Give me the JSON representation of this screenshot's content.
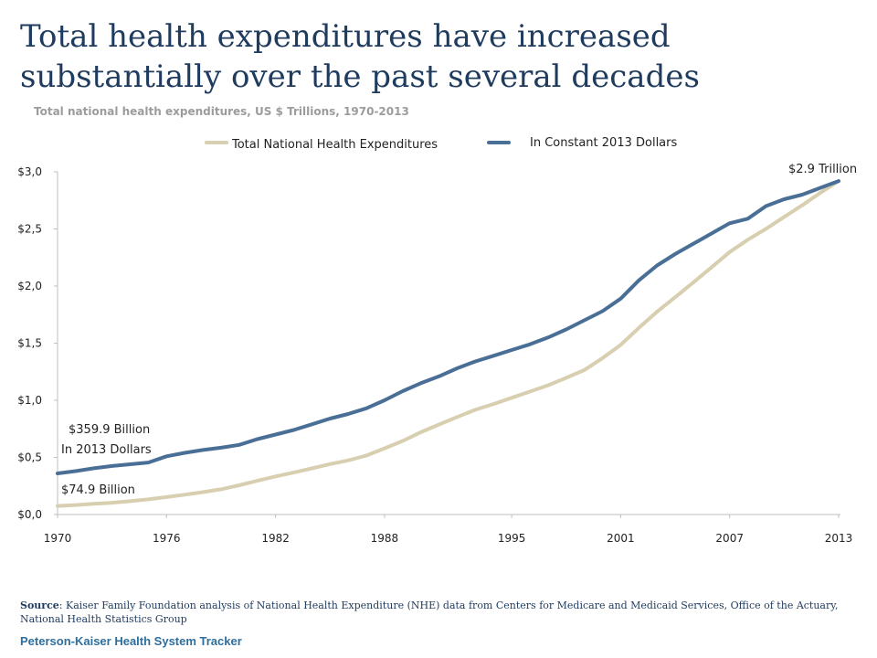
{
  "header": {
    "title": "Total health expenditures have increased substantially over the past several decades",
    "subtitle": "Total national health expenditures, US $ Trillions, 1970-2013"
  },
  "source": {
    "label": "Source",
    "text": ": Kaiser Family Foundation analysis of National Health Expenditure (NHE) data from Centers for Medicare and Medicaid Services, Office of the Actuary, National Health Statistics Group"
  },
  "footer": {
    "brand": "Peterson-Kaiser Health System Tracker"
  },
  "chart_data": {
    "type": "line",
    "title": "Total national health expenditures, US $ Trillions, 1970-2013",
    "xlabel": "",
    "ylabel": "",
    "xlim": [
      1970,
      2013
    ],
    "ylim": [
      0,
      3.0
    ],
    "x_ticks": [
      1970,
      1976,
      1982,
      1988,
      1995,
      2001,
      2007,
      2013
    ],
    "y_ticks": [
      0,
      0.5,
      1.0,
      1.5,
      2.0,
      2.5,
      3.0
    ],
    "y_tick_labels": [
      "$0,0",
      "$0,5",
      "$1,0",
      "$1,5",
      "$2,0",
      "$2,5",
      "$3,0"
    ],
    "grid": false,
    "legend_position": "top",
    "x": [
      1970,
      1971,
      1972,
      1973,
      1974,
      1975,
      1976,
      1977,
      1978,
      1979,
      1980,
      1981,
      1982,
      1983,
      1984,
      1985,
      1986,
      1987,
      1988,
      1989,
      1990,
      1991,
      1992,
      1993,
      1994,
      1995,
      1996,
      1997,
      1998,
      1999,
      2000,
      2001,
      2002,
      2003,
      2004,
      2005,
      2006,
      2007,
      2008,
      2009,
      2010,
      2011,
      2012,
      2013
    ],
    "series": [
      {
        "name": "Total National Health Expenditures",
        "color": "#d8ceb0",
        "values": [
          0.075,
          0.083,
          0.094,
          0.103,
          0.117,
          0.133,
          0.153,
          0.174,
          0.196,
          0.221,
          0.256,
          0.295,
          0.334,
          0.367,
          0.404,
          0.442,
          0.474,
          0.516,
          0.579,
          0.644,
          0.721,
          0.788,
          0.854,
          0.917,
          0.967,
          1.022,
          1.076,
          1.131,
          1.196,
          1.265,
          1.369,
          1.485,
          1.634,
          1.775,
          1.902,
          2.031,
          2.163,
          2.298,
          2.406,
          2.501,
          2.605,
          2.707,
          2.817,
          2.919
        ]
      },
      {
        "name": "In Constant 2013 Dollars",
        "color": "#4a6f96",
        "values": [
          0.36,
          0.38,
          0.405,
          0.425,
          0.44,
          0.455,
          0.51,
          0.54,
          0.565,
          0.585,
          0.61,
          0.66,
          0.7,
          0.74,
          0.79,
          0.84,
          0.88,
          0.93,
          1.0,
          1.08,
          1.15,
          1.21,
          1.28,
          1.34,
          1.39,
          1.44,
          1.49,
          1.55,
          1.62,
          1.7,
          1.78,
          1.89,
          2.05,
          2.18,
          2.28,
          2.37,
          2.46,
          2.55,
          2.59,
          2.7,
          2.76,
          2.8,
          2.86,
          2.919
        ]
      }
    ],
    "annotations": [
      {
        "text": "$2.9 Trillion"
      },
      {
        "text": "$359.9 Billion"
      },
      {
        "text": "In 2013 Dollars"
      },
      {
        "text": "$74.9 Billion"
      }
    ]
  }
}
